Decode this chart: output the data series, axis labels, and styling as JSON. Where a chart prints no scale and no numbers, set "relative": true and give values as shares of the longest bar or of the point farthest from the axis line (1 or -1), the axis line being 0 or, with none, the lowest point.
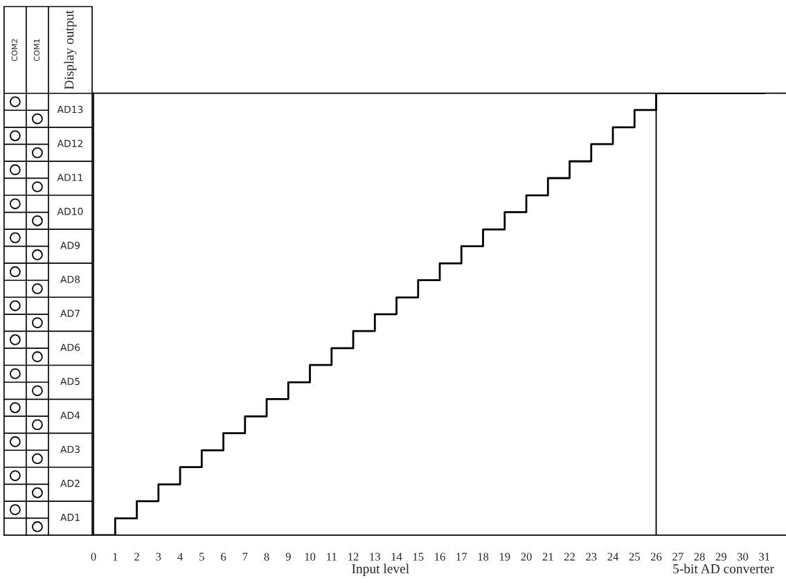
{
  "chart_data": {
    "type": "step",
    "xlabel": "Input level",
    "ylabel": "Display output",
    "annotations": [
      "COM2",
      "COM1",
      "AD1",
      "AD2",
      "AD3",
      "AD4",
      "AD5",
      "AD6",
      "AD7",
      "AD8",
      "AD9",
      "AD10",
      "AD11",
      "AD12",
      "AD13",
      "5-bit AD converter"
    ],
    "relative": true,
    "x": [
      0,
      1,
      2,
      3,
      4,
      5,
      6,
      7,
      8,
      9,
      10,
      11,
      12,
      13,
      14,
      15,
      16,
      17,
      18,
      19,
      20,
      21,
      22,
      23,
      24,
      25,
      26,
      27,
      28,
      29,
      30,
      31
    ],
    "series": [
      {
        "color": "#000000",
        "values": [
          0,
          0.038,
          0.077,
          0.115,
          0.154,
          0.192,
          0.231,
          0.269,
          0.308,
          0.346,
          0.385,
          0.423,
          0.462,
          0.5,
          0.538,
          0.577,
          0.615,
          0.654,
          0.692,
          0.731,
          0.769,
          0.808,
          0.846,
          0.885,
          0.923,
          0.962,
          1,
          1,
          1,
          1,
          1,
          1
        ]
      }
    ],
    "xlim": [
      0,
      32
    ],
    "xticks": [
      0,
      1,
      2,
      3,
      4,
      5,
      6,
      7,
      8,
      9,
      10,
      11,
      12,
      13,
      14,
      15,
      16,
      17,
      18,
      19,
      20,
      21,
      22,
      23,
      24,
      25,
      26,
      27,
      28,
      29,
      30,
      31
    ],
    "ref_lines": [
      {
        "axis": "x",
        "value": 26,
        "color": "#000000"
      }
    ],
    "grid": false
  }
}
